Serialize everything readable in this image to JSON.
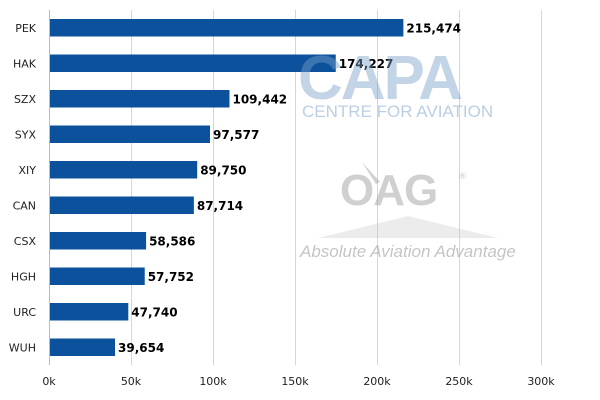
{
  "chart_data": {
    "type": "bar",
    "orientation": "horizontal",
    "categories": [
      "PEK",
      "HAK",
      "SZX",
      "SYX",
      "XIY",
      "CAN",
      "CSX",
      "HGH",
      "URC",
      "WUH"
    ],
    "values": [
      215474,
      174227,
      109442,
      97577,
      89750,
      87714,
      58586,
      57752,
      47740,
      39654
    ],
    "data_labels": [
      "215,474",
      "174,227",
      "109,442",
      "97,577",
      "89,750",
      "87,714",
      "58,586",
      "57,752",
      "47,740",
      "39,654"
    ],
    "xlim": [
      0,
      300000
    ],
    "x_ticks": [
      0,
      50000,
      100000,
      150000,
      200000,
      250000,
      300000
    ],
    "x_tick_labels": [
      "0k",
      "50k",
      "100k",
      "150k",
      "200k",
      "250k",
      "300k"
    ],
    "grid": true,
    "bar_color": "#0b519b"
  },
  "watermarks": {
    "capa_logo": "CAPA",
    "capa_subtitle": "CENTRE FOR AVIATION",
    "oag_logo": "OAG",
    "oag_registered": "®",
    "oag_tagline": "Absolute Aviation Advantage"
  }
}
